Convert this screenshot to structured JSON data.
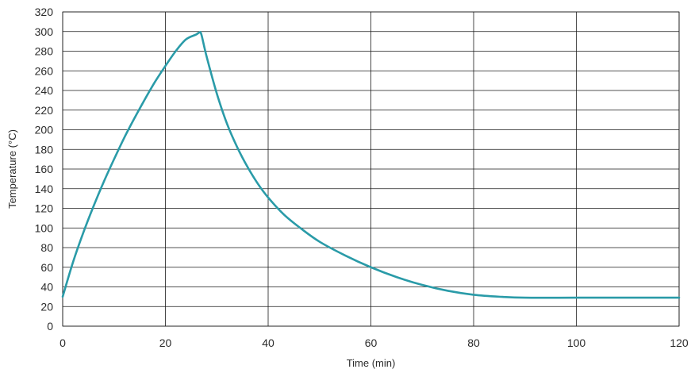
{
  "chart_data": {
    "type": "line",
    "title": "",
    "xlabel": "Time (min)",
    "ylabel": "Temperature (°C)",
    "xlim": [
      0,
      120
    ],
    "ylim": [
      0,
      320
    ],
    "x_ticks": [
      0,
      20,
      40,
      60,
      80,
      100,
      120
    ],
    "y_ticks": [
      0,
      20,
      40,
      60,
      80,
      100,
      120,
      140,
      160,
      180,
      200,
      220,
      240,
      260,
      280,
      300,
      320
    ],
    "grid": true,
    "legend": "none",
    "line_color": "#2a9ba8",
    "series": [
      {
        "x": [
          0,
          2,
          4,
          6,
          8,
          10,
          12,
          14,
          16,
          18,
          20,
          22,
          24,
          26,
          26.6,
          27,
          28,
          30,
          32,
          34,
          36,
          38,
          40,
          43,
          46,
          50,
          55,
          60,
          65,
          70,
          75,
          80,
          85,
          90,
          100,
          110,
          120
        ],
        "y": [
          30,
          65,
          95,
          122,
          147,
          170,
          192,
          212,
          231,
          249,
          265,
          280,
          292,
          297,
          299,
          297,
          275,
          237,
          206,
          182,
          162,
          145,
          131,
          114,
          101,
          86,
          72,
          60,
          50,
          42,
          36,
          32,
          30,
          29,
          29,
          29,
          29
        ]
      }
    ]
  }
}
